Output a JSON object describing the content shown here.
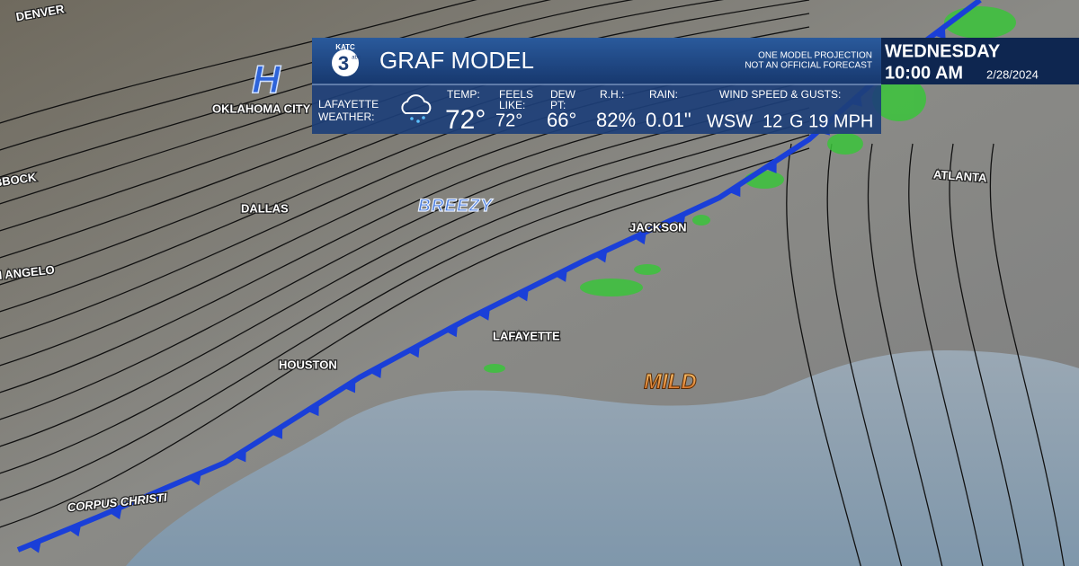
{
  "logo": {
    "station": "KATC",
    "channel": "3",
    "network": "abc"
  },
  "header": {
    "title": "GRAF MODEL",
    "disclaimer": [
      "ONE MODEL PROJECTION",
      "NOT AN OFFICIAL FORECAST"
    ],
    "day": "WEDNESDAY",
    "time": "10:00 AM",
    "date": "2/28/2024"
  },
  "conditions": {
    "location": [
      "LAFAYETTE",
      "WEATHER:"
    ],
    "fields": [
      {
        "label": [
          "TEMP:"
        ],
        "value": "72°"
      },
      {
        "label": [
          "FEELS",
          "LIKE:"
        ],
        "value": "72°"
      },
      {
        "label": [
          "DEW",
          "PT:"
        ],
        "value": "66°"
      },
      {
        "label": [
          "R.H.:"
        ],
        "value": "82%"
      },
      {
        "label": [
          "RAIN:"
        ],
        "value": "0.01\""
      }
    ],
    "wind": {
      "label": "WIND SPEED & GUSTS:",
      "direction": "WSW",
      "speed": "12",
      "gust": "G 19 MPH"
    }
  },
  "map": {
    "pressure_center": "H",
    "callouts": [
      "BREEZY",
      "MILD"
    ],
    "cities": [
      "DENVER",
      "OKLAHOMA CITY",
      "LUBBOCK",
      "DALLAS",
      "SAN ANGELO",
      "HOUSTON",
      "CORPUS CHRISTI",
      "JACKSON",
      "ATLANTA",
      "LAFAYETTE"
    ]
  }
}
